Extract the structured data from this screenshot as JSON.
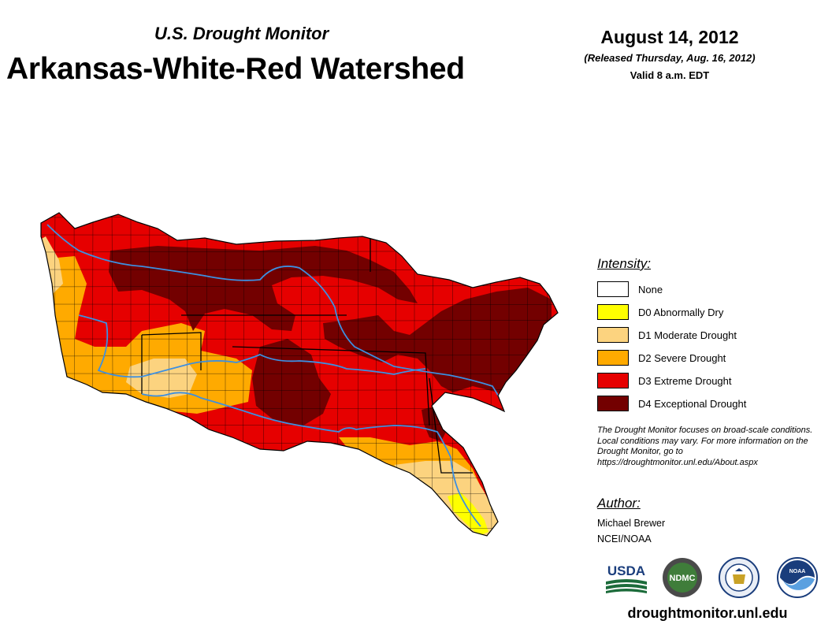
{
  "header": {
    "subtitle": "U.S. Drought Monitor",
    "title": "Arkansas-White-Red Watershed",
    "date": "August 14, 2012",
    "released": "(Released Thursday, Aug. 16, 2012)",
    "valid": "Valid 8 a.m. EDT"
  },
  "legend": {
    "title": "Intensity:",
    "items": [
      {
        "label": "None",
        "color": "#ffffff"
      },
      {
        "label": "D0 Abnormally Dry",
        "color": "#ffff00"
      },
      {
        "label": "D1 Moderate Drought",
        "color": "#fcd37f"
      },
      {
        "label": "D2 Severe Drought",
        "color": "#ffaa00"
      },
      {
        "label": "D3 Extreme Drought",
        "color": "#e60000"
      },
      {
        "label": "D4 Exceptional Drought",
        "color": "#730000"
      }
    ]
  },
  "note": "The Drought Monitor focuses on broad-scale conditions. Local conditions may vary. For more information on the Drought Monitor, go to https://droughtmonitor.unl.edu/About.aspx",
  "author": {
    "title": "Author:",
    "name": "Michael Brewer",
    "org": "NCEI/NOAA"
  },
  "logos": [
    {
      "icon": "usda-logo",
      "text": "USDA"
    },
    {
      "icon": "ndmc-logo",
      "text": "NDMC"
    },
    {
      "icon": "doc-seal-logo",
      "text": ""
    },
    {
      "icon": "noaa-logo",
      "text": "NOAA"
    }
  ],
  "website": "droughtmonitor.unl.edu",
  "map": {
    "river_color": "#3d8fe0",
    "boundary_color": "#000000"
  }
}
